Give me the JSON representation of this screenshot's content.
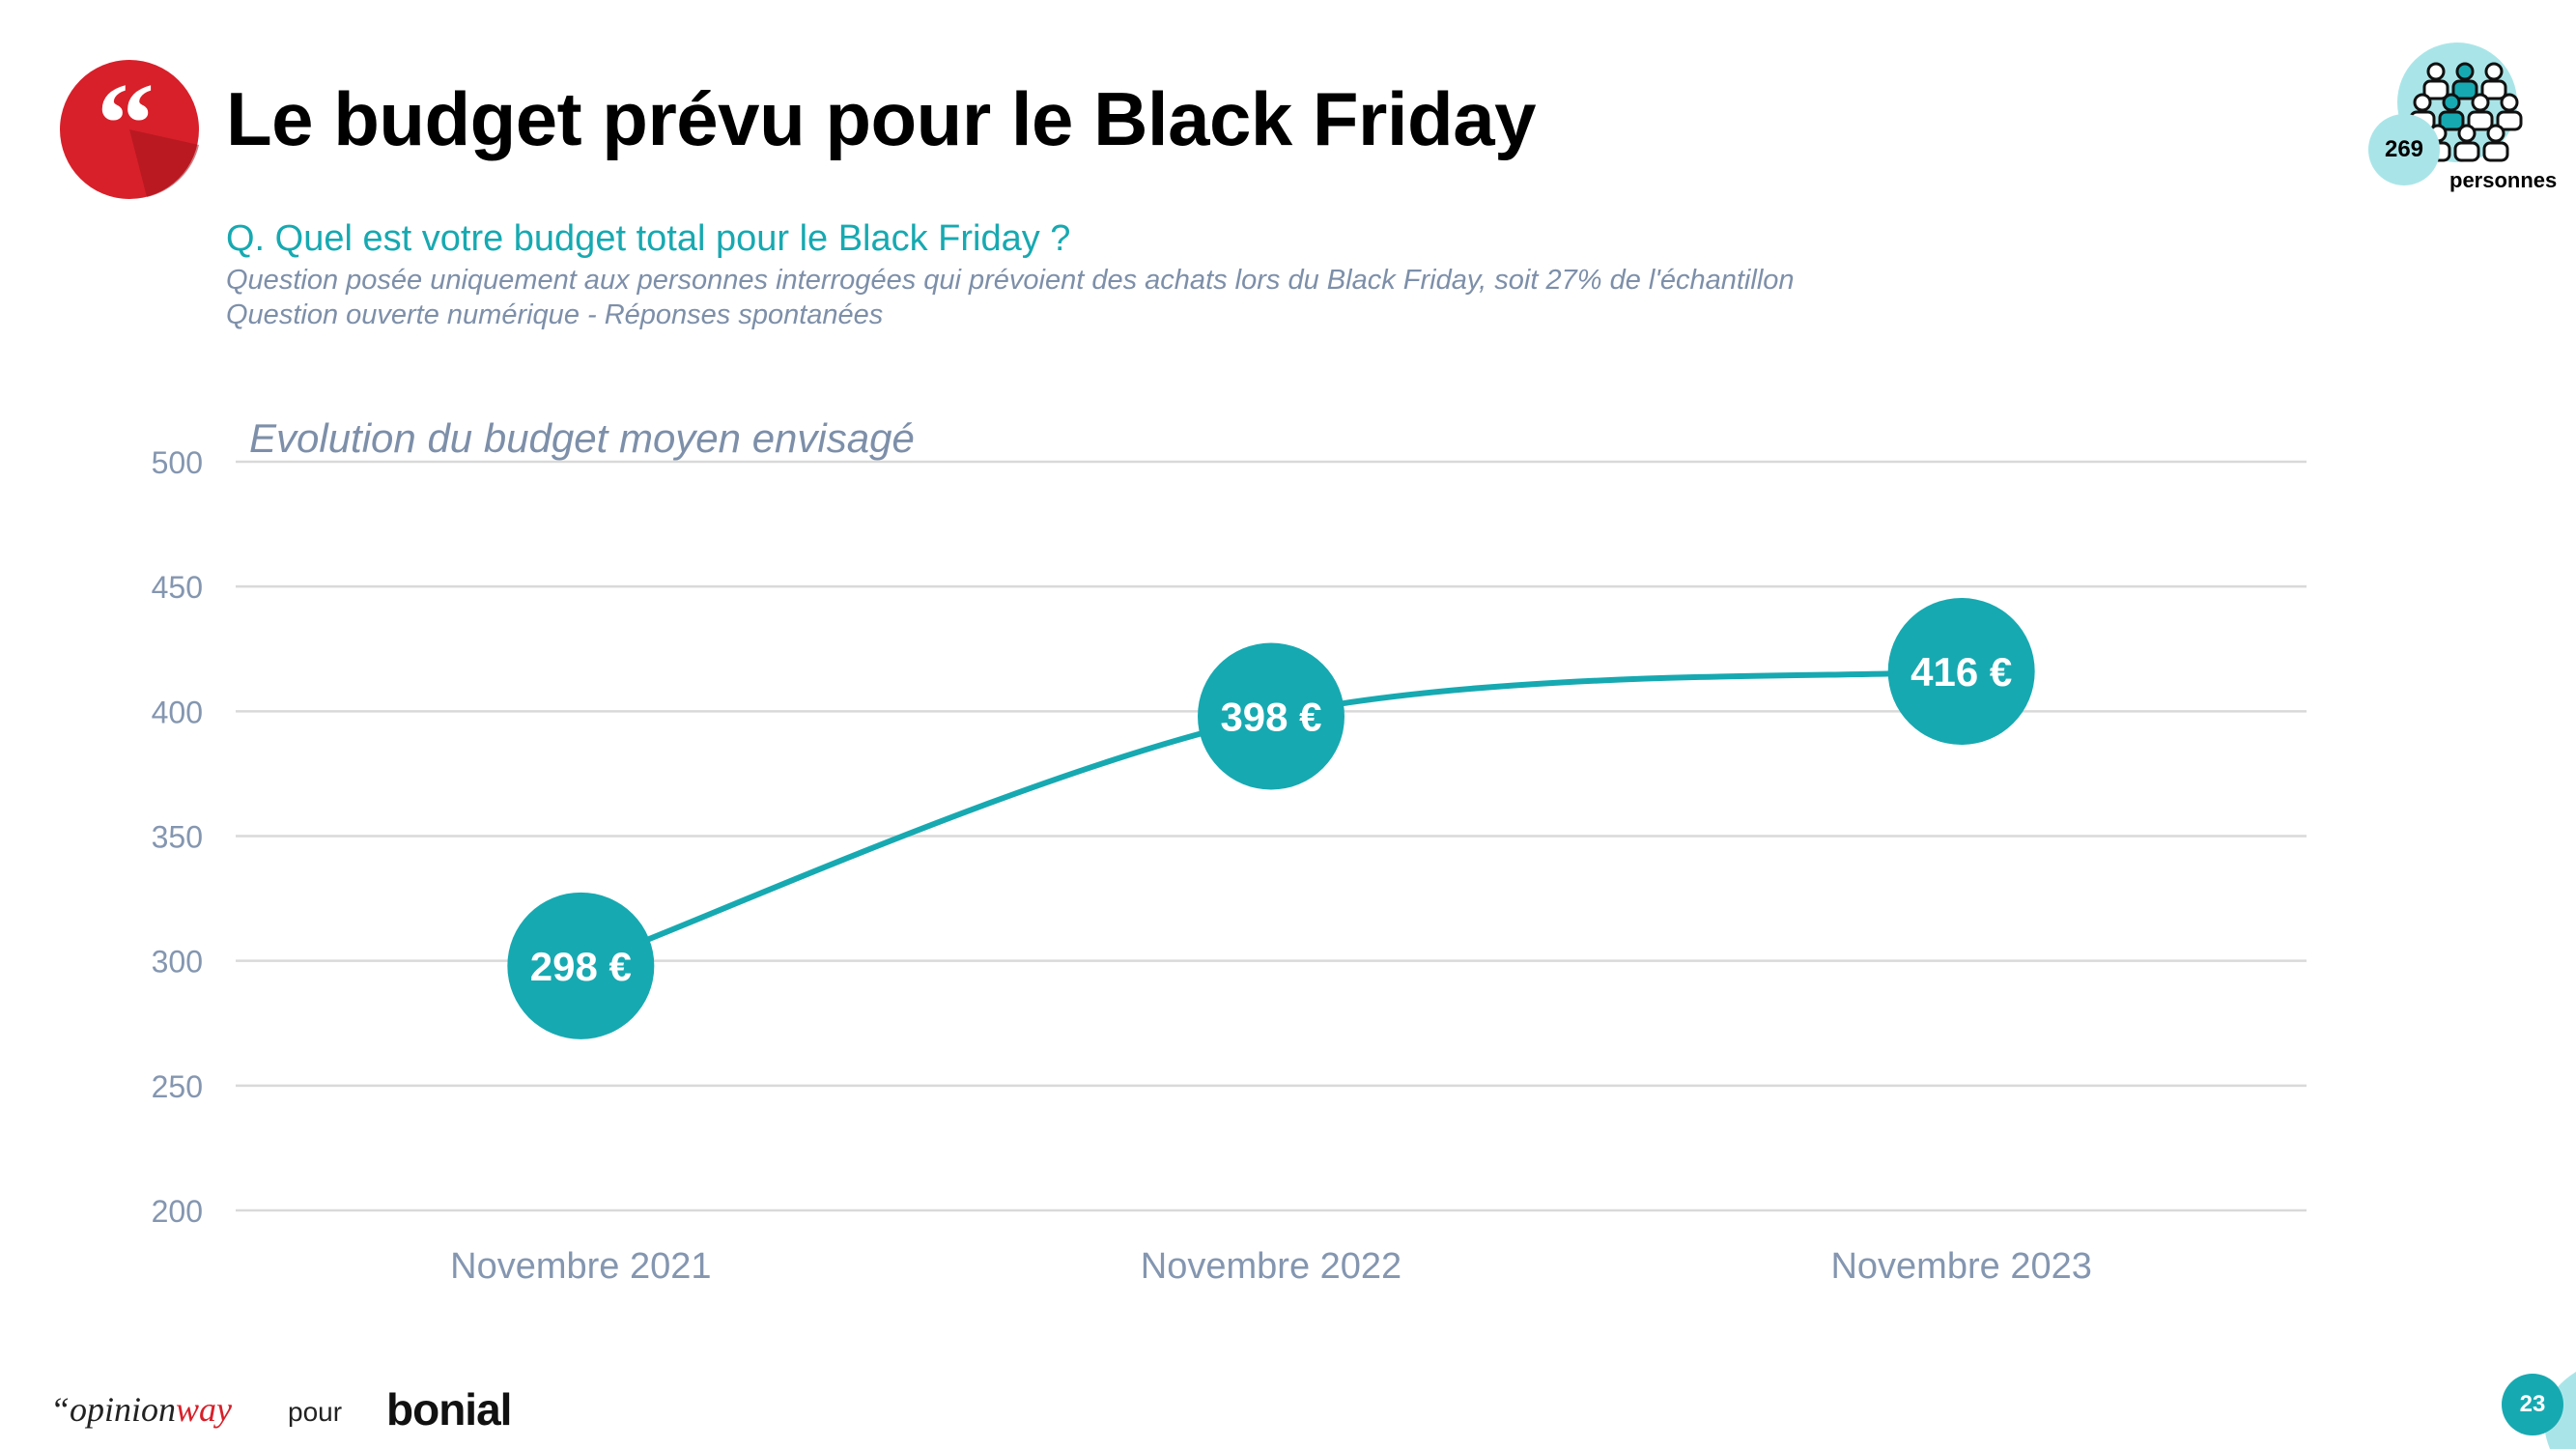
{
  "header": {
    "title": "Le budget prévu pour le Black Friday",
    "question": "Q. Quel est votre budget total pour le Black Friday ?",
    "note1": "Question posée uniquement aux personnes interrogées qui prévoient des achats lors du Black Friday, soit 27% de l'échantillon",
    "note2": "Question ouverte numérique - Réponses spontanées",
    "people_count": "269",
    "people_label": "personnes"
  },
  "colors": {
    "accent": "#17a9b1",
    "quote_red": "#d8202a",
    "axis_text": "#8496b0",
    "grid": "#d9d9d9"
  },
  "chart_data": {
    "type": "line",
    "title": "Evolution du budget moyen envisagé",
    "categories": [
      "Novembre 2021",
      "Novembre 2022",
      "Novembre 2023"
    ],
    "series": [
      {
        "values": [
          298,
          398,
          416
        ],
        "labels": [
          "298 €",
          "398 €",
          "416 €"
        ]
      }
    ],
    "ylim": [
      200,
      500
    ],
    "yticks": [
      200,
      250,
      300,
      350,
      400,
      450,
      500
    ],
    "grid": true
  },
  "footer": {
    "brand_quote": "“",
    "brand_main": "opinion",
    "brand_accent": "way",
    "pour": "pour",
    "partner": "bonial",
    "page_number": "23"
  }
}
